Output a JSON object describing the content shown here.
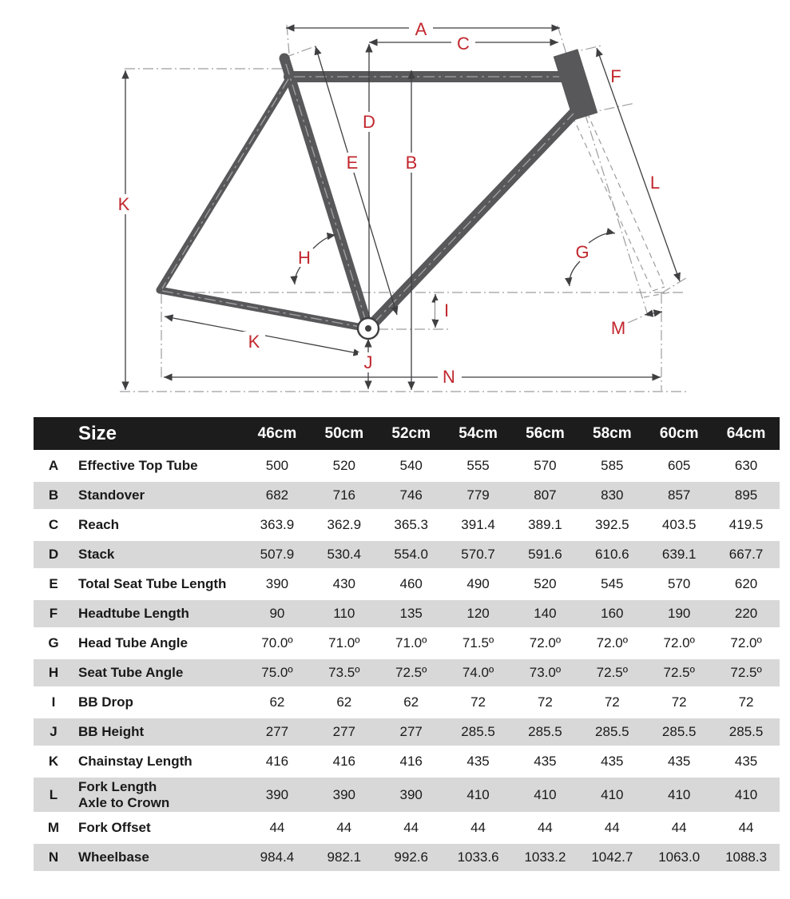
{
  "diagram": {
    "labels": {
      "A": "A",
      "B": "B",
      "C": "C",
      "D": "D",
      "E": "E",
      "F": "F",
      "G": "G",
      "H": "H",
      "I": "I",
      "J": "J",
      "K": "K",
      "L": "L",
      "M": "M",
      "N": "N"
    },
    "colors": {
      "frame": "#58585a",
      "dimension_line": "#3f3f41",
      "centerline": "#9d9da0",
      "label_red": "#c1272d"
    }
  },
  "table": {
    "size_label": "Size",
    "columns": [
      "46cm",
      "50cm",
      "52cm",
      "54cm",
      "56cm",
      "58cm",
      "60cm",
      "64cm"
    ],
    "rows": [
      {
        "letter": "A",
        "label": [
          "Effective Top Tube"
        ],
        "values": [
          "500",
          "520",
          "540",
          "555",
          "570",
          "585",
          "605",
          "630"
        ]
      },
      {
        "letter": "B",
        "label": [
          "Standover"
        ],
        "values": [
          "682",
          "716",
          "746",
          "779",
          "807",
          "830",
          "857",
          "895"
        ]
      },
      {
        "letter": "C",
        "label": [
          "Reach"
        ],
        "values": [
          "363.9",
          "362.9",
          "365.3",
          "391.4",
          "389.1",
          "392.5",
          "403.5",
          "419.5"
        ]
      },
      {
        "letter": "D",
        "label": [
          "Stack"
        ],
        "values": [
          "507.9",
          "530.4",
          "554.0",
          "570.7",
          "591.6",
          "610.6",
          "639.1",
          "667.7"
        ]
      },
      {
        "letter": "E",
        "label": [
          "Total Seat Tube Length"
        ],
        "values": [
          "390",
          "430",
          "460",
          "490",
          "520",
          "545",
          "570",
          "620"
        ]
      },
      {
        "letter": "F",
        "label": [
          "Headtube Length"
        ],
        "values": [
          "90",
          "110",
          "135",
          "120",
          "140",
          "160",
          "190",
          "220"
        ]
      },
      {
        "letter": "G",
        "label": [
          "Head Tube Angle"
        ],
        "values": [
          "70.0º",
          "71.0º",
          "71.0º",
          "71.5º",
          "72.0º",
          "72.0º",
          "72.0º",
          "72.0º"
        ]
      },
      {
        "letter": "H",
        "label": [
          "Seat Tube Angle"
        ],
        "values": [
          "75.0º",
          "73.5º",
          "72.5º",
          "74.0º",
          "73.0º",
          "72.5º",
          "72.5º",
          "72.5º"
        ]
      },
      {
        "letter": "I",
        "label": [
          "BB Drop"
        ],
        "values": [
          "62",
          "62",
          "62",
          "72",
          "72",
          "72",
          "72",
          "72"
        ]
      },
      {
        "letter": "J",
        "label": [
          "BB Height"
        ],
        "values": [
          "277",
          "277",
          "277",
          "285.5",
          "285.5",
          "285.5",
          "285.5",
          "285.5"
        ]
      },
      {
        "letter": "K",
        "label": [
          "Chainstay Length"
        ],
        "values": [
          "416",
          "416",
          "416",
          "435",
          "435",
          "435",
          "435",
          "435"
        ]
      },
      {
        "letter": "L",
        "label": [
          "Fork Length",
          "Axle to Crown"
        ],
        "values": [
          "390",
          "390",
          "390",
          "410",
          "410",
          "410",
          "410",
          "410"
        ]
      },
      {
        "letter": "M",
        "label": [
          "Fork Offset"
        ],
        "values": [
          "44",
          "44",
          "44",
          "44",
          "44",
          "44",
          "44",
          "44"
        ]
      },
      {
        "letter": "N",
        "label": [
          "Wheelbase"
        ],
        "values": [
          "984.4",
          "982.1",
          "992.6",
          "1033.6",
          "1033.2",
          "1042.7",
          "1063.0",
          "1088.3"
        ]
      }
    ],
    "colors": {
      "header_bg": "#1d1c1d",
      "header_text": "#ffffff",
      "row_alt_bg": "#d8d8d8",
      "row_text": "#1a1a1a"
    }
  }
}
